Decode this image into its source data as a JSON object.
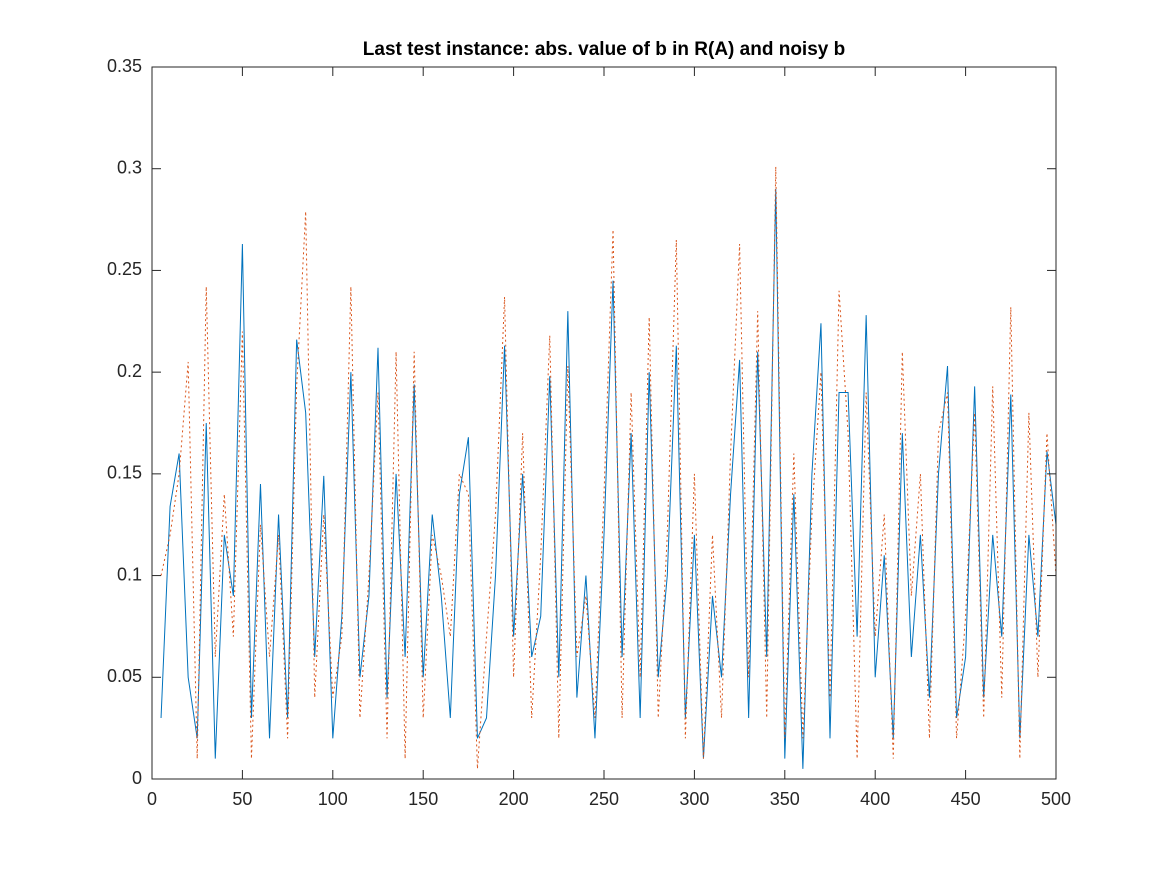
{
  "chart_data": {
    "type": "line",
    "title": "Last test instance: abs. value of b in R(A) and noisy b",
    "x": [
      5,
      10,
      15,
      20,
      25,
      30,
      35,
      40,
      45,
      50,
      55,
      60,
      65,
      70,
      75,
      80,
      85,
      90,
      95,
      100,
      105,
      110,
      115,
      120,
      125,
      130,
      135,
      140,
      145,
      150,
      155,
      160,
      165,
      170,
      175,
      180,
      185,
      190,
      195,
      200,
      205,
      210,
      215,
      220,
      225,
      230,
      235,
      240,
      245,
      250,
      255,
      260,
      265,
      270,
      275,
      280,
      285,
      290,
      295,
      300,
      305,
      310,
      315,
      320,
      325,
      330,
      335,
      340,
      345,
      350,
      355,
      360,
      365,
      370,
      375,
      380,
      385,
      390,
      395,
      400,
      405,
      410,
      415,
      420,
      425,
      430,
      435,
      440,
      445,
      450,
      455,
      460,
      465,
      470,
      475,
      480,
      485,
      490,
      495,
      500
    ],
    "series": [
      {
        "color": "#0072BD",
        "dash": "solid",
        "values": [
          0.03,
          0.134,
          0.16,
          0.05,
          0.02,
          0.175,
          0.01,
          0.12,
          0.09,
          0.263,
          0.03,
          0.145,
          0.02,
          0.13,
          0.03,
          0.216,
          0.18,
          0.06,
          0.149,
          0.02,
          0.08,
          0.2,
          0.05,
          0.09,
          0.212,
          0.04,
          0.15,
          0.06,
          0.194,
          0.05,
          0.13,
          0.09,
          0.03,
          0.14,
          0.168,
          0.02,
          0.03,
          0.1,
          0.213,
          0.07,
          0.15,
          0.06,
          0.08,
          0.198,
          0.05,
          0.23,
          0.04,
          0.1,
          0.02,
          0.12,
          0.245,
          0.06,
          0.17,
          0.03,
          0.2,
          0.05,
          0.1,
          0.213,
          0.03,
          0.12,
          0.01,
          0.09,
          0.05,
          0.14,
          0.206,
          0.03,
          0.21,
          0.06,
          0.29,
          0.01,
          0.14,
          0.005,
          0.15,
          0.224,
          0.02,
          0.19,
          0.19,
          0.07,
          0.228,
          0.05,
          0.11,
          0.02,
          0.17,
          0.06,
          0.12,
          0.04,
          0.15,
          0.203,
          0.03,
          0.06,
          0.193,
          0.04,
          0.12,
          0.07,
          0.189,
          0.02,
          0.12,
          0.07,
          0.161,
          0.125
        ]
      },
      {
        "color": "#D95319",
        "dash": "dotted",
        "values": [
          0.1,
          0.12,
          0.15,
          0.205,
          0.01,
          0.242,
          0.06,
          0.14,
          0.07,
          0.22,
          0.01,
          0.125,
          0.06,
          0.12,
          0.02,
          0.193,
          0.279,
          0.04,
          0.13,
          0.04,
          0.07,
          0.242,
          0.03,
          0.1,
          0.19,
          0.02,
          0.21,
          0.01,
          0.21,
          0.03,
          0.12,
          0.1,
          0.07,
          0.15,
          0.14,
          0.005,
          0.07,
          0.13,
          0.237,
          0.05,
          0.17,
          0.03,
          0.11,
          0.218,
          0.02,
          0.203,
          0.06,
          0.09,
          0.03,
          0.14,
          0.27,
          0.03,
          0.19,
          0.05,
          0.227,
          0.03,
          0.12,
          0.265,
          0.02,
          0.15,
          0.01,
          0.12,
          0.03,
          0.16,
          0.263,
          0.05,
          0.23,
          0.03,
          0.301,
          0.02,
          0.16,
          0.02,
          0.13,
          0.2,
          0.04,
          0.24,
          0.17,
          0.01,
          0.19,
          0.07,
          0.13,
          0.01,
          0.21,
          0.09,
          0.15,
          0.02,
          0.17,
          0.19,
          0.02,
          0.08,
          0.18,
          0.03,
          0.193,
          0.04,
          0.232,
          0.01,
          0.18,
          0.05,
          0.17,
          0.1
        ]
      }
    ],
    "xlim": [
      0,
      500
    ],
    "xticks": [
      0,
      50,
      100,
      150,
      200,
      250,
      300,
      350,
      400,
      450,
      500
    ],
    "ylim": [
      0,
      0.35
    ],
    "yticks": [
      0,
      0.05,
      0.1,
      0.15,
      0.2,
      0.25,
      0.3,
      0.35
    ],
    "box": true
  }
}
